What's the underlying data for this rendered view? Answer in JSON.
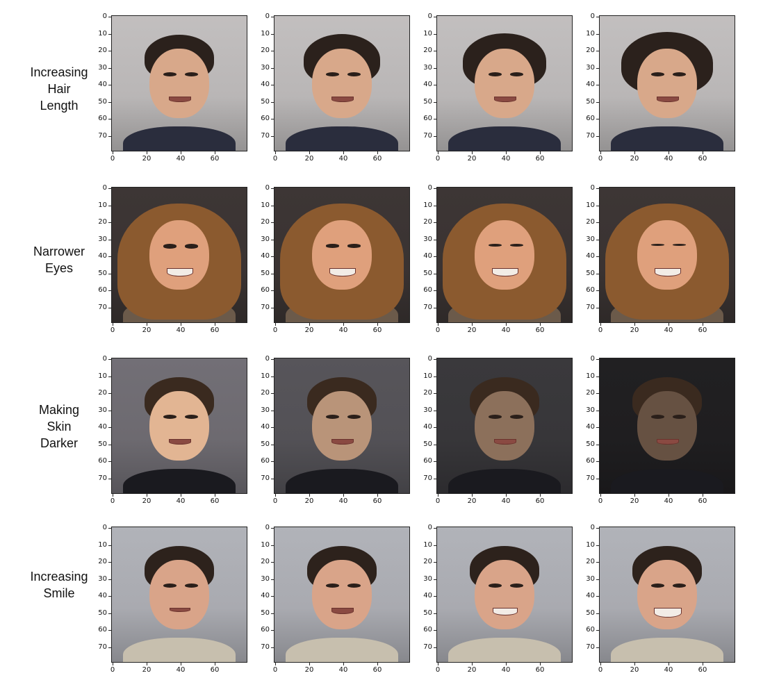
{
  "rows": [
    {
      "label_lines": [
        "Increasing",
        "Hair",
        "Length"
      ],
      "skin": "#d8a88a",
      "hair": "#2b211c",
      "bg": "#b9b6b6",
      "shirt": "#2a2d3d",
      "style": "man"
    },
    {
      "label_lines": [
        "Narrower",
        "Eyes"
      ],
      "skin": "#dfa07c",
      "hair": "#8b5a2f",
      "bg": "#3a3332",
      "shirt": "#6b5a4a",
      "style": "woman"
    },
    {
      "label_lines": [
        "Making",
        "Skin",
        "Darker"
      ],
      "skin": "#e2b593",
      "hair": "#3a2a1f",
      "bg": "#6d6a70",
      "shirt": "#1a1a1f",
      "style": "man"
    },
    {
      "label_lines": [
        "Increasing",
        "Smile"
      ],
      "skin": "#d9a489",
      "hair": "#2d221c",
      "bg": "#a9aab0",
      "shirt": "#c7bfae",
      "style": "man"
    }
  ],
  "y_ticks": [
    "0",
    "10",
    "20",
    "30",
    "40",
    "50",
    "60",
    "70"
  ],
  "x_ticks": [
    "0",
    "20",
    "40",
    "60"
  ]
}
